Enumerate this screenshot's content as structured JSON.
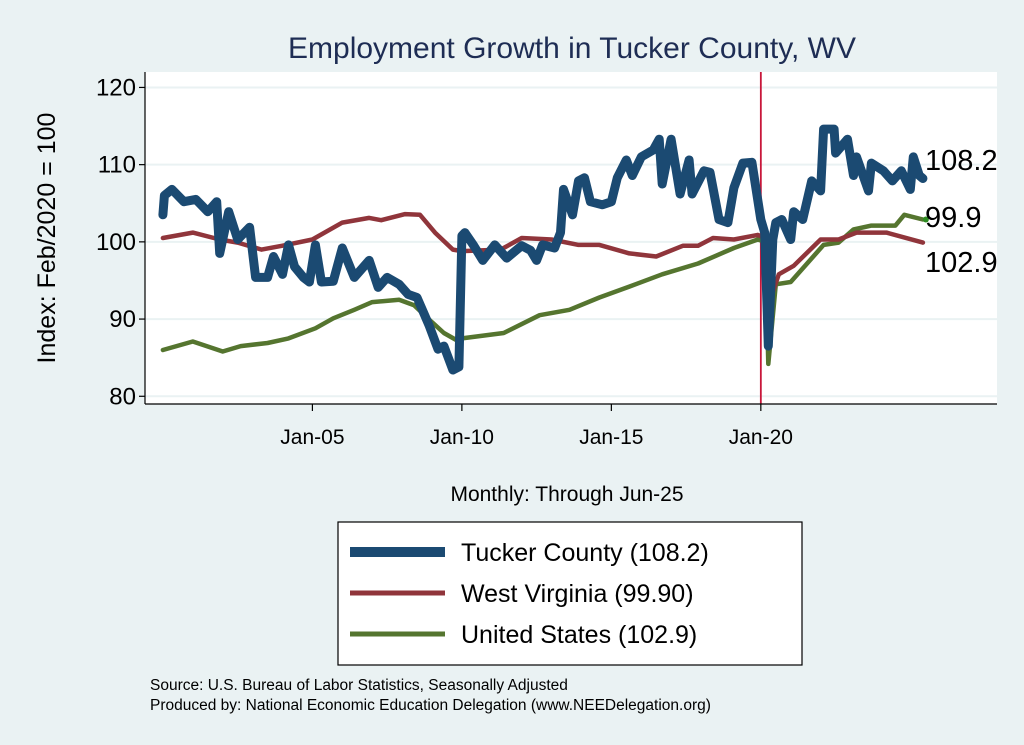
{
  "chart_data": {
    "type": "line",
    "title": "Employment Growth in Tucker  County, WV",
    "xlabel": "Monthly: Through Jun-25",
    "ylabel": "Index: Feb/2020 = 100",
    "ylim": [
      79,
      122
    ],
    "xlim": [
      1999.4,
      2027.9
    ],
    "yticks": [
      80,
      90,
      100,
      110,
      120
    ],
    "xticks": [
      {
        "value": 2005,
        "label": "Jan-05"
      },
      {
        "value": 2010,
        "label": "Jan-10"
      },
      {
        "value": 2015,
        "label": "Jan-15"
      },
      {
        "value": 2020,
        "label": "Jan-20"
      }
    ],
    "reference_line_x": 2020.0,
    "grid": true,
    "legend_position": "bottom",
    "series": [
      {
        "name": "Tucker  County",
        "legend": "Tucker  County (108.2)",
        "color": "#1b4a72",
        "end_label": "108.2",
        "points": [
          [
            2000.0,
            103.5
          ],
          [
            2000.05,
            106
          ],
          [
            2000.3,
            106.8
          ],
          [
            2000.7,
            105.2
          ],
          [
            2001.1,
            105.5
          ],
          [
            2001.5,
            103.9
          ],
          [
            2001.8,
            105.2
          ],
          [
            2001.9,
            98.5
          ],
          [
            2002.2,
            103.9
          ],
          [
            2002.5,
            100.3
          ],
          [
            2002.9,
            101.9
          ],
          [
            2003.1,
            95.4
          ],
          [
            2003.5,
            95.4
          ],
          [
            2003.7,
            98.1
          ],
          [
            2004.0,
            95.8
          ],
          [
            2004.2,
            99.6
          ],
          [
            2004.4,
            96.8
          ],
          [
            2004.7,
            95.4
          ],
          [
            2004.9,
            94.8
          ],
          [
            2005.1,
            99.6
          ],
          [
            2005.3,
            94.8
          ],
          [
            2005.7,
            94.9
          ],
          [
            2006.0,
            99.2
          ],
          [
            2006.4,
            95.4
          ],
          [
            2006.9,
            97.6
          ],
          [
            2007.2,
            94.1
          ],
          [
            2007.5,
            95.4
          ],
          [
            2007.9,
            94.5
          ],
          [
            2008.2,
            93.2
          ],
          [
            2008.5,
            92.8
          ],
          [
            2008.9,
            89.2
          ],
          [
            2009.2,
            86.1
          ],
          [
            2009.4,
            86.5
          ],
          [
            2009.7,
            83.4
          ],
          [
            2009.9,
            83.8
          ],
          [
            2010.0,
            100.8
          ],
          [
            2010.1,
            101.2
          ],
          [
            2010.4,
            99.5
          ],
          [
            2010.7,
            97.6
          ],
          [
            2011.1,
            99.6
          ],
          [
            2011.5,
            97.9
          ],
          [
            2012.0,
            99.5
          ],
          [
            2012.3,
            98.9
          ],
          [
            2012.5,
            97.6
          ],
          [
            2012.7,
            99.6
          ],
          [
            2013.1,
            99.2
          ],
          [
            2013.3,
            101.2
          ],
          [
            2013.4,
            106.8
          ],
          [
            2013.7,
            103.5
          ],
          [
            2013.9,
            107.9
          ],
          [
            2014.1,
            108.3
          ],
          [
            2014.3,
            105.2
          ],
          [
            2014.7,
            104.8
          ],
          [
            2015.0,
            105.2
          ],
          [
            2015.2,
            108.3
          ],
          [
            2015.5,
            110.6
          ],
          [
            2015.7,
            108.6
          ],
          [
            2016.0,
            111
          ],
          [
            2016.4,
            111.9
          ],
          [
            2016.6,
            113.3
          ],
          [
            2016.7,
            107.5
          ],
          [
            2017.0,
            113.3
          ],
          [
            2017.3,
            106.2
          ],
          [
            2017.6,
            110.6
          ],
          [
            2017.7,
            106.2
          ],
          [
            2018.1,
            109.2
          ],
          [
            2018.3,
            109
          ],
          [
            2018.6,
            102.9
          ],
          [
            2018.9,
            102.5
          ],
          [
            2019.1,
            107
          ],
          [
            2019.4,
            110.2
          ],
          [
            2019.7,
            110.3
          ],
          [
            2020.0,
            102.9
          ],
          [
            2020.13,
            101.2
          ],
          [
            2020.25,
            86.5
          ],
          [
            2020.4,
            100.3
          ],
          [
            2020.5,
            102.5
          ],
          [
            2020.7,
            102.9
          ],
          [
            2021.0,
            100.3
          ],
          [
            2021.1,
            103.9
          ],
          [
            2021.4,
            102.9
          ],
          [
            2021.7,
            107.9
          ],
          [
            2022.0,
            106.6
          ],
          [
            2022.1,
            114.6
          ],
          [
            2022.45,
            114.6
          ],
          [
            2022.5,
            111.5
          ],
          [
            2022.9,
            113.3
          ],
          [
            2023.1,
            108.6
          ],
          [
            2023.2,
            111
          ],
          [
            2023.6,
            106.6
          ],
          [
            2023.7,
            110.2
          ],
          [
            2024.1,
            109.2
          ],
          [
            2024.4,
            107.9
          ],
          [
            2024.7,
            109.2
          ],
          [
            2025.0,
            106.8
          ],
          [
            2025.1,
            111
          ],
          [
            2025.3,
            108.6
          ],
          [
            2025.42,
            108.2
          ]
        ]
      },
      {
        "name": "West Virginia",
        "legend": "West Virginia (99.90)",
        "color": "#90353b",
        "end_label": "99.9",
        "points": [
          [
            2000.0,
            100.5
          ],
          [
            2001.0,
            101.2
          ],
          [
            2001.9,
            100.3
          ],
          [
            2002.5,
            99.9
          ],
          [
            2003.3,
            99.0
          ],
          [
            2004.0,
            99.5
          ],
          [
            2005.0,
            100.3
          ],
          [
            2006.0,
            102.5
          ],
          [
            2006.9,
            103.1
          ],
          [
            2007.3,
            102.8
          ],
          [
            2008.1,
            103.6
          ],
          [
            2008.6,
            103.5
          ],
          [
            2009.1,
            101.2
          ],
          [
            2009.7,
            99.0
          ],
          [
            2010.0,
            98.8
          ],
          [
            2011.3,
            99.0
          ],
          [
            2012.0,
            100.5
          ],
          [
            2013.0,
            100.3
          ],
          [
            2013.9,
            99.6
          ],
          [
            2014.6,
            99.6
          ],
          [
            2015.6,
            98.5
          ],
          [
            2016.5,
            98.1
          ],
          [
            2017.4,
            99.5
          ],
          [
            2017.9,
            99.5
          ],
          [
            2018.4,
            100.5
          ],
          [
            2019.1,
            100.3
          ],
          [
            2019.9,
            100.9
          ],
          [
            2020.15,
            100.5
          ],
          [
            2020.25,
            91.8
          ],
          [
            2020.6,
            95.8
          ],
          [
            2021.1,
            96.9
          ],
          [
            2022.0,
            100.3
          ],
          [
            2022.6,
            100.3
          ],
          [
            2023.2,
            101.2
          ],
          [
            2024.2,
            101.2
          ],
          [
            2025.42,
            99.9
          ]
        ]
      },
      {
        "name": "United States",
        "legend": "United States (102.9)",
        "color": "#55752f",
        "end_label": "102.9",
        "points": [
          [
            2000.0,
            86.0
          ],
          [
            2001.0,
            87.1
          ],
          [
            2002.0,
            85.8
          ],
          [
            2002.6,
            86.5
          ],
          [
            2003.5,
            86.9
          ],
          [
            2004.2,
            87.5
          ],
          [
            2005.1,
            88.8
          ],
          [
            2005.7,
            90.1
          ],
          [
            2006.4,
            91.2
          ],
          [
            2007.0,
            92.2
          ],
          [
            2007.9,
            92.5
          ],
          [
            2008.4,
            91.8
          ],
          [
            2009.0,
            89.6
          ],
          [
            2009.4,
            88.2
          ],
          [
            2009.9,
            87.1
          ],
          [
            2010.0,
            87.5
          ],
          [
            2011.4,
            88.2
          ],
          [
            2012.6,
            90.5
          ],
          [
            2013.6,
            91.2
          ],
          [
            2014.6,
            92.8
          ],
          [
            2015.6,
            94.2
          ],
          [
            2016.7,
            95.8
          ],
          [
            2017.9,
            97.2
          ],
          [
            2019.1,
            99.2
          ],
          [
            2019.9,
            100.3
          ],
          [
            2020.15,
            100.0
          ],
          [
            2020.25,
            84.2
          ],
          [
            2020.5,
            94.5
          ],
          [
            2021.0,
            94.8
          ],
          [
            2022.1,
            99.6
          ],
          [
            2022.6,
            99.9
          ],
          [
            2023.1,
            101.6
          ],
          [
            2023.7,
            102.1
          ],
          [
            2024.5,
            102.1
          ],
          [
            2024.8,
            103.5
          ],
          [
            2025.42,
            102.9
          ]
        ]
      }
    ]
  },
  "notes": {
    "source": "Source: U.S. Bureau of Labor Statistics, Seasonally Adjusted",
    "produced_by": "Produced by: National Economic Education Delegation (www.NEEDelegation.org)"
  }
}
